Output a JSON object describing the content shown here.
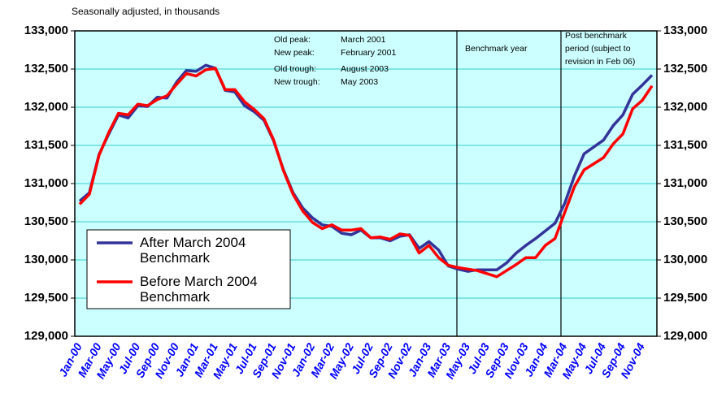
{
  "chart_data": {
    "type": "line",
    "subtitle": "Seasonally adjusted, in thousands",
    "categories": [
      "Jan-00",
      null,
      "Mar-00",
      null,
      "May-00",
      null,
      "Jul-00",
      null,
      "Sep-00",
      null,
      "Nov-00",
      null,
      "Jan-01",
      null,
      "Mar-01",
      null,
      "May-01",
      null,
      "Jul-01",
      null,
      "Sep-01",
      null,
      "Nov-01",
      null,
      "Jan-02",
      null,
      "Mar-02",
      null,
      "May-02",
      null,
      "Jul-02",
      null,
      "Sep-02",
      null,
      "Nov-02",
      null,
      "Jan-03",
      null,
      "Mar-03",
      null,
      "May-03",
      null,
      "Jul-03",
      null,
      "Sep-03",
      null,
      "Nov-03",
      null,
      "Jan-04",
      null,
      "Mar-04",
      null,
      "May-04",
      null,
      "Jul-04",
      null,
      "Sep-04",
      null,
      "Nov-04",
      null
    ],
    "series": [
      {
        "name": "After March 2004 Benchmark",
        "color": "#333399",
        "values": [
          130770,
          130880,
          131380,
          131650,
          131900,
          131860,
          132020,
          132010,
          132130,
          132120,
          132330,
          132480,
          132470,
          132550,
          132510,
          132220,
          132200,
          132020,
          131940,
          131830,
          131560,
          131180,
          130880,
          130680,
          130550,
          130460,
          130440,
          130350,
          130330,
          130390,
          130290,
          130290,
          130250,
          130310,
          130330,
          130150,
          130240,
          130130,
          129920,
          129880,
          129850,
          129870,
          129870,
          129870,
          129960,
          130090,
          130190,
          130280,
          130380,
          130480,
          130740,
          131100,
          131390,
          131480,
          131570,
          131760,
          131900,
          132170,
          132290,
          132420
        ]
      },
      {
        "name": "Before March 2004 Benchmark",
        "color": "#ff0000",
        "values": [
          130730,
          130860,
          131370,
          131670,
          131920,
          131900,
          132040,
          132020,
          132100,
          132150,
          132300,
          132440,
          132410,
          132490,
          132510,
          132230,
          132230,
          132070,
          131970,
          131850,
          131570,
          131170,
          130860,
          130640,
          130490,
          130410,
          130460,
          130390,
          130390,
          130410,
          130290,
          130300,
          130270,
          130340,
          130320,
          130090,
          130190,
          130030,
          129930,
          129900,
          129880,
          129860,
          129820,
          129780,
          129860,
          129940,
          130030,
          130030,
          130190,
          130280,
          130620,
          130960,
          131180,
          131260,
          131340,
          131520,
          131650,
          131980,
          132090,
          132280
        ]
      }
    ],
    "annotations": [
      "Old peak:",
      "March 2001",
      "New peak:",
      "February 2001",
      "Old trough:",
      "August 2003",
      "New trough:",
      "May 2003",
      "Benchmark year",
      "Post benchmark",
      "period (subject to",
      "revision in Feb 06)"
    ],
    "ylim": [
      129000,
      133000
    ],
    "yticks": [
      {
        "value": 129000,
        "label": "129,000"
      },
      {
        "value": 129500,
        "label": "129,500"
      },
      {
        "value": 130000,
        "label": "130,000"
      },
      {
        "value": 130500,
        "label": "130,500"
      },
      {
        "value": 131000,
        "label": "131,000"
      },
      {
        "value": 131500,
        "label": "131,500"
      },
      {
        "value": 132000,
        "label": "132,000"
      },
      {
        "value": 132500,
        "label": "132,500"
      },
      {
        "value": 133000,
        "label": "133,000"
      }
    ],
    "y2lim": [
      129000,
      133000
    ],
    "y2ticks": [
      {
        "value": 129000,
        "label": "129,000"
      },
      {
        "value": 129500,
        "label": "129,500"
      },
      {
        "value": 130000,
        "label": "130,000"
      },
      {
        "value": 130500,
        "label": "130,500"
      },
      {
        "value": 131000,
        "label": "131,000"
      },
      {
        "value": 131500,
        "label": "131,500"
      },
      {
        "value": 132000,
        "label": "132,000"
      },
      {
        "value": 132500,
        "label": "132,500"
      },
      {
        "value": 133000,
        "label": "133,000"
      }
    ],
    "grid": true
  }
}
